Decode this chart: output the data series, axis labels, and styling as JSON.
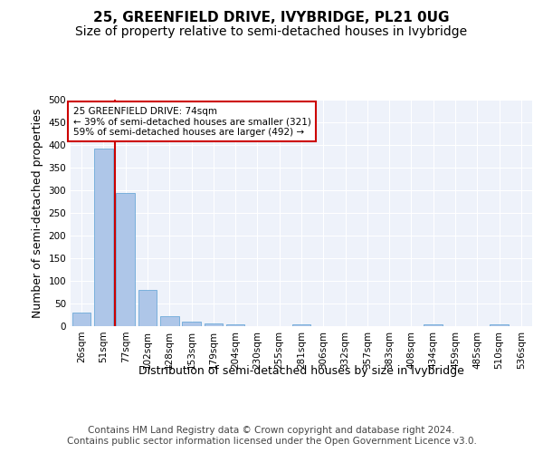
{
  "title": "25, GREENFIELD DRIVE, IVYBRIDGE, PL21 0UG",
  "subtitle": "Size of property relative to semi-detached houses in Ivybridge",
  "xlabel": "Distribution of semi-detached houses by size in Ivybridge",
  "ylabel": "Number of semi-detached properties",
  "bin_labels": [
    "26sqm",
    "51sqm",
    "77sqm",
    "102sqm",
    "128sqm",
    "153sqm",
    "179sqm",
    "204sqm",
    "230sqm",
    "255sqm",
    "281sqm",
    "306sqm",
    "332sqm",
    "357sqm",
    "383sqm",
    "408sqm",
    "434sqm",
    "459sqm",
    "485sqm",
    "510sqm",
    "536sqm"
  ],
  "bar_values": [
    30,
    393,
    295,
    80,
    23,
    10,
    7,
    4,
    0,
    0,
    5,
    0,
    0,
    0,
    0,
    0,
    4,
    0,
    0,
    4,
    0
  ],
  "bar_color": "#aec6e8",
  "bar_edge_color": "#5a9fd4",
  "subject_line_bin": 2,
  "subject_line_color": "#cc0000",
  "annotation_text": "25 GREENFIELD DRIVE: 74sqm\n← 39% of semi-detached houses are smaller (321)\n59% of semi-detached houses are larger (492) →",
  "annotation_box_color": "#cc0000",
  "ylim": [
    0,
    500
  ],
  "yticks": [
    0,
    50,
    100,
    150,
    200,
    250,
    300,
    350,
    400,
    450,
    500
  ],
  "footer_text": "Contains HM Land Registry data © Crown copyright and database right 2024.\nContains public sector information licensed under the Open Government Licence v3.0.",
  "bg_color": "#ffffff",
  "plot_bg_color": "#eef2fa",
  "grid_color": "#ffffff",
  "title_fontsize": 11,
  "subtitle_fontsize": 10,
  "axis_label_fontsize": 9,
  "tick_fontsize": 7.5,
  "footer_fontsize": 7.5
}
